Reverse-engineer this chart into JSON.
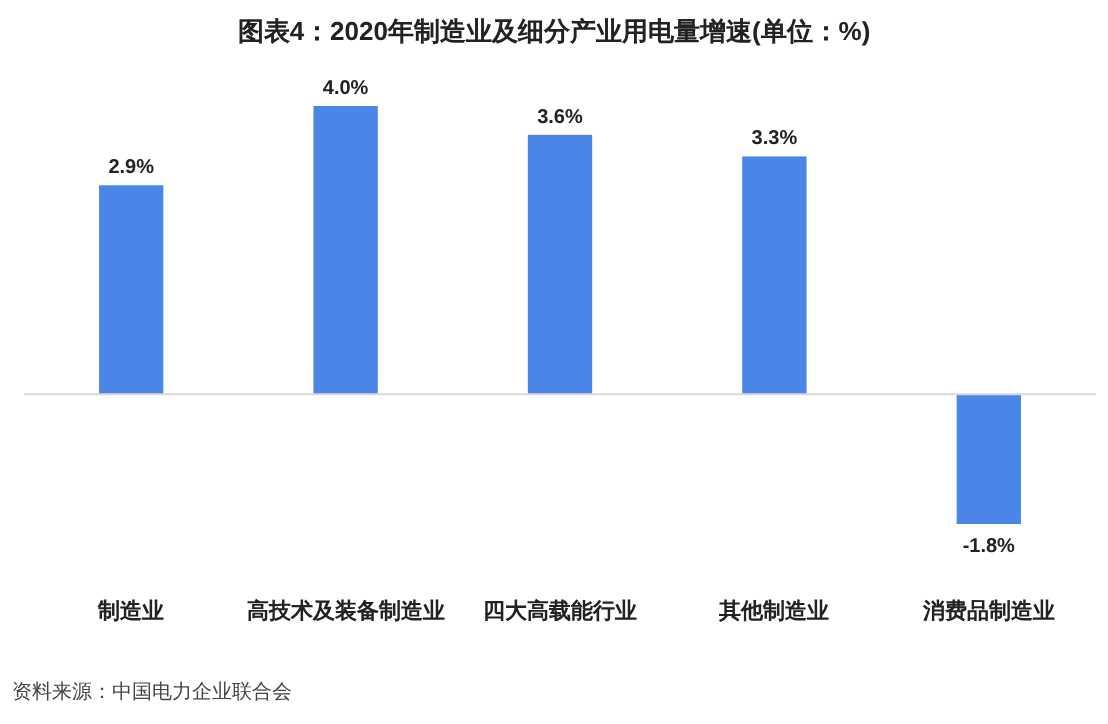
{
  "chart_data": {
    "type": "bar",
    "title": "图表4：2020年制造业及细分产业用电量增速(单位：%)",
    "categories": [
      "制造业",
      "高技术及装备制造业",
      "四大高载能行业",
      "其他制造业",
      "消费品制造业"
    ],
    "values": [
      2.9,
      4.0,
      3.6,
      3.3,
      -1.8
    ],
    "color": "#4a86e8",
    "value_labels": [
      "2.9%",
      "4.0%",
      "3.6%",
      "3.3%",
      "-1.8%"
    ],
    "annotations": [
      "资料来源：中国电力企业联合会"
    ]
  }
}
